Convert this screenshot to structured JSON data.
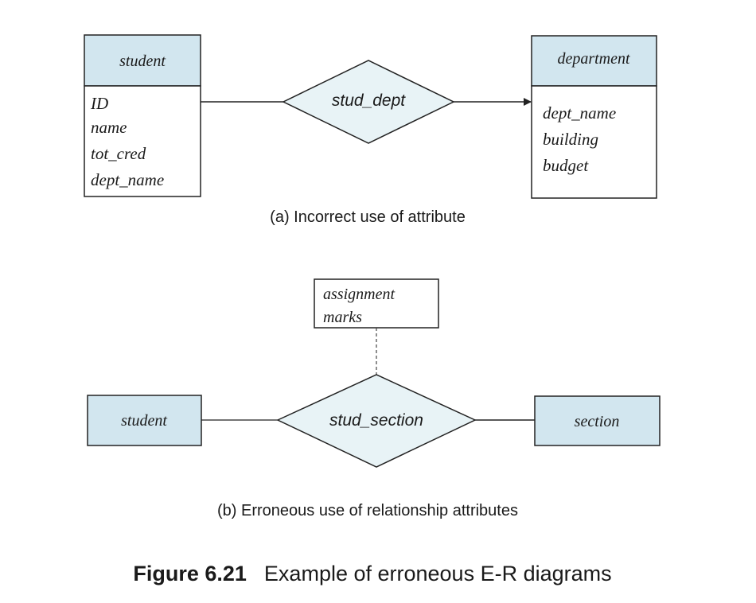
{
  "colors": {
    "entity_header_fill": "#d2e6ef",
    "diamond_fill": "#e8f3f6",
    "stroke": "#222222",
    "text": "#1a1a1a"
  },
  "diagram_a": {
    "student": {
      "name": "student",
      "attributes": [
        "ID",
        "name",
        "tot_cred",
        "dept_name"
      ]
    },
    "relationship": "stud_dept",
    "department": {
      "name": "department",
      "attributes": [
        "dept_name",
        "building",
        "budget"
      ]
    },
    "caption": "(a) Incorrect use of attribute"
  },
  "diagram_b": {
    "relationship_attributes": [
      "assignment",
      "marks"
    ],
    "left_entity": "student",
    "relationship": "stud_section",
    "right_entity": "section",
    "caption": "(b) Erroneous use of relationship attributes"
  },
  "figure": {
    "label": "Figure 6.21",
    "title": "Example of erroneous E-R diagrams"
  }
}
